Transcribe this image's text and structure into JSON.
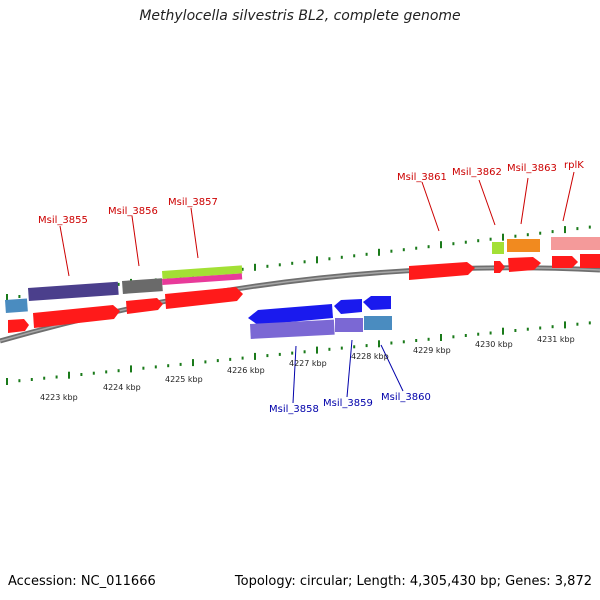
{
  "title": "Methylocella silvestris BL2, complete genome",
  "accession": "Accession: NC_011666",
  "genome_info": "Topology: circular; Length: 4,305,430 bp; Genes: 3,872",
  "colors": {
    "forward_label": "#cc0000",
    "reverse_label": "#0000aa",
    "tick": "#1a7a1a",
    "backbone": "#777777"
  },
  "kbp_labels": [
    {
      "text": "4223 kbp"
    },
    {
      "text": "4224 kbp"
    },
    {
      "text": "4225 kbp"
    },
    {
      "text": "4226 kbp"
    },
    {
      "text": "4227 kbp"
    },
    {
      "text": "4228 kbp"
    },
    {
      "text": "4229 kbp"
    },
    {
      "text": "4230 kbp"
    },
    {
      "text": "4231 kbp"
    }
  ],
  "forward_genes": [
    {
      "label": "Msil_3855"
    },
    {
      "label": "Msil_3856"
    },
    {
      "label": "Msil_3857"
    },
    {
      "label": "Msil_3861"
    },
    {
      "label": "Msil_3862"
    },
    {
      "label": "Msil_3863"
    },
    {
      "label": "rplK"
    }
  ],
  "reverse_genes": [
    {
      "label": "Msil_3858"
    },
    {
      "label": "Msil_3859"
    },
    {
      "label": "Msil_3860"
    }
  ]
}
